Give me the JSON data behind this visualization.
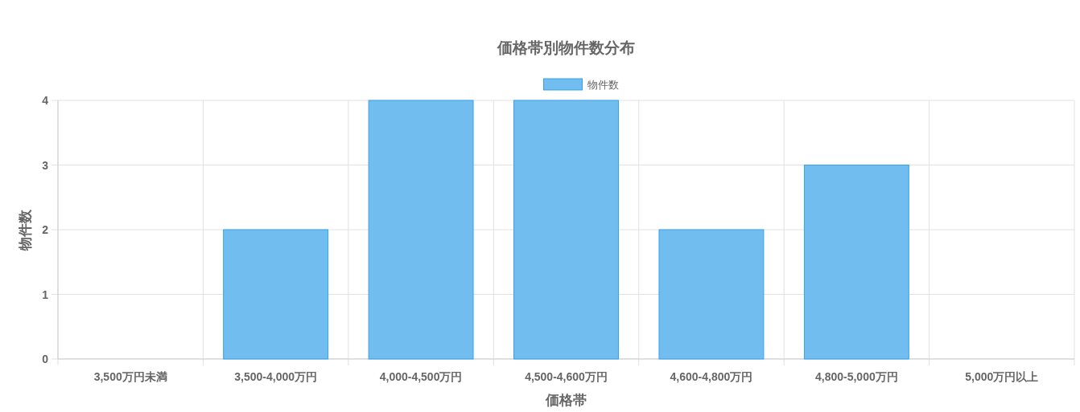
{
  "chart_data": {
    "type": "bar",
    "title": "価格帯別物件数分布",
    "xlabel": "価格帯",
    "ylabel": "物件数",
    "categories": [
      "3,500万円未満",
      "3,500-4,000万円",
      "4,000-4,500万円",
      "4,500-4,600万円",
      "4,600-4,800万円",
      "4,800-5,000万円",
      "5,000万円以上"
    ],
    "series": [
      {
        "name": "物件数",
        "color": "#71bdef",
        "values": [
          0,
          2,
          4,
          4,
          2,
          3,
          0
        ]
      }
    ],
    "ylim": [
      0,
      4
    ],
    "yticks": [
      0,
      1,
      2,
      3,
      4
    ],
    "grid": true,
    "legend": "top"
  }
}
